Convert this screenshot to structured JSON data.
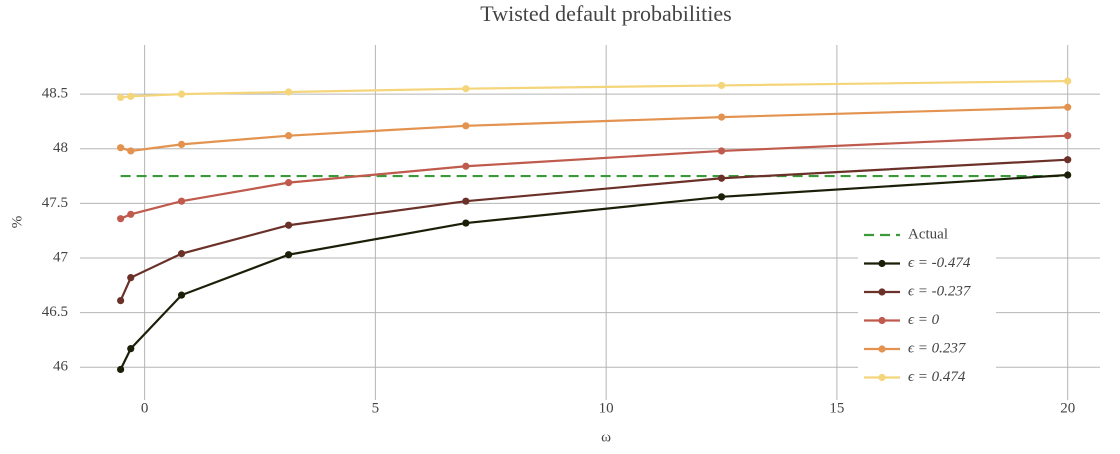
{
  "chart_data": {
    "type": "line",
    "title": "Twisted default probabilities",
    "x_label": "ω",
    "y_label": "%",
    "x": [
      -0.52,
      -0.3,
      0.8,
      3.12,
      6.96,
      12.5,
      20
    ],
    "xlim": [
      -1.4,
      20.7
    ],
    "ylim": [
      45.7,
      48.95
    ],
    "xticks": [
      0,
      5,
      10,
      15,
      20
    ],
    "yticks": [
      46,
      46.5,
      47,
      47.5,
      48,
      48.5
    ],
    "grid": true,
    "legend": "bottom-right",
    "series": [
      {
        "name": "Actual",
        "color": "#3a9a3a",
        "dash": true,
        "x": [
          -0.52,
          20
        ],
        "values": [
          47.75,
          47.75
        ]
      },
      {
        "name": "ϵ = -0.474",
        "color": "#1c1f08",
        "values": [
          45.98,
          46.17,
          46.66,
          47.03,
          47.32,
          47.56,
          47.76
        ]
      },
      {
        "name": "ϵ = -0.237",
        "color": "#6b3129",
        "values": [
          46.61,
          46.82,
          47.04,
          47.3,
          47.52,
          47.73,
          47.9
        ]
      },
      {
        "name": "ϵ = 0",
        "color": "#bf5a4c",
        "values": [
          47.36,
          47.4,
          47.52,
          47.69,
          47.84,
          47.98,
          48.12
        ]
      },
      {
        "name": "ϵ = 0.237",
        "color": "#e3934f",
        "values": [
          48.01,
          47.98,
          48.04,
          48.12,
          48.21,
          48.29,
          48.38
        ]
      },
      {
        "name": "ϵ = 0.474",
        "color": "#f4d57a",
        "values": [
          48.47,
          48.48,
          48.5,
          48.52,
          48.55,
          48.58,
          48.62
        ]
      }
    ]
  }
}
